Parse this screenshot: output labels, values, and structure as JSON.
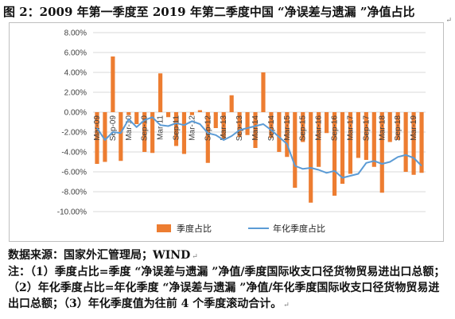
{
  "title": "图 2：2009 年第一季度至 2019 年第二季度中国 “净误差与遗漏 ”净值占比",
  "source": "数据来源：国家外汇管理局；WIND",
  "notes": "注：（1）季度占比=季度 “净误差与遗漏 ”净值/季度国际收支口径货物贸易进出口总额；（2）年化季度占比=年化季度 “净误差与遗漏 ”净值/年化季度国际收支口径货物贸易进出口总额；（3）年化季度值为往前 4 个季度滚动合计。",
  "return_mark": "↵",
  "colors": {
    "bar": "#ed7d31",
    "line": "#5b9bd5",
    "grid": "#d9d9d9",
    "axis_text": "#404040"
  },
  "chart_data": {
    "type": "bar",
    "ylim": [
      -10,
      8
    ],
    "yticks": [
      8,
      6,
      4,
      2,
      0,
      -2,
      -4,
      -6,
      -8,
      -10
    ],
    "ytick_labels": [
      "8.00%",
      "6.00%",
      "4.00%",
      "2.00%",
      "0.00%",
      "-2.00%",
      "-4.00%",
      "-6.00%",
      "-8.00%",
      "-10.00%"
    ],
    "categories": [
      "Mar-09",
      "Jun-09",
      "Sep-09",
      "Dec-09",
      "Mar-10",
      "Jun-10",
      "Sep-10",
      "Dec-10",
      "Mar-11",
      "Jun-11",
      "Sep-11",
      "Dec-11",
      "Mar-12",
      "Jun-12",
      "Sep-12",
      "Dec-12",
      "Mar-13",
      "Jun-13",
      "Sep-13",
      "Dec-13",
      "Mar-14",
      "Jun-14",
      "Sep-14",
      "Dec-14",
      "Mar-15",
      "Jun-15",
      "Sep-15",
      "Dec-15",
      "Mar-16",
      "Jun-16",
      "Sep-16",
      "Dec-16",
      "Mar-17",
      "Jun-17",
      "Sep-17",
      "Dec-17",
      "Mar-18",
      "Jun-18",
      "Sep-18",
      "Dec-18",
      "Mar-19",
      "Jun-19"
    ],
    "xtick_labels": [
      "Mar-09",
      "Sep-09",
      "Mar-10",
      "Sep-10",
      "Mar-11",
      "Sep-11",
      "Mar-12",
      "Sep-12",
      "Mar-13",
      "Sep-13",
      "Mar-14",
      "Sep-14",
      "Mar-15",
      "Sep-15",
      "Mar-16",
      "Sep-16",
      "Mar-17",
      "Sep-17",
      "Mar-18",
      "Sep-18",
      "Mar-19"
    ],
    "grid": true,
    "legend_position": "bottom",
    "series": [
      {
        "name": "季度占比",
        "type": "bar",
        "values": [
          -5.2,
          -5.0,
          5.6,
          -4.9,
          -0.3,
          -1.2,
          -4.0,
          -4.1,
          3.9,
          -0.5,
          -3.4,
          -4.2,
          -0.3,
          0.2,
          -5.1,
          -1.6,
          -2.7,
          1.7,
          -2.5,
          -2.3,
          -3.6,
          4.0,
          -2.6,
          -4.0,
          -4.5,
          -7.6,
          -3.0,
          -9.1,
          -5.5,
          -2.1,
          -8.4,
          -7.2,
          -6.2,
          -4.6,
          -4.8,
          -5.5,
          -8.1,
          -3.0,
          -2.8,
          -6.0,
          -6.3,
          -6.1
        ]
      },
      {
        "name": "年化季度占比",
        "type": "line",
        "values": [
          -1.6,
          -2.8,
          -2.0,
          -2.1,
          -0.7,
          -1.5,
          -0.8,
          -0.5,
          -1.3,
          -1.4,
          -1.1,
          -1.3,
          -0.9,
          -1.2,
          -2.1,
          -2.3,
          -2.8,
          -2.4,
          -1.8,
          -1.6,
          -1.4,
          -1.2,
          -1.8,
          -2.5,
          -3.2,
          -5.4,
          -5.7,
          -5.6,
          -5.8,
          -6.1,
          -5.9,
          -6.6,
          -6.4,
          -6.2,
          -5.1,
          -4.9,
          -5.2,
          -5.0,
          -4.5,
          -4.3,
          -4.6,
          -5.4
        ]
      }
    ]
  }
}
